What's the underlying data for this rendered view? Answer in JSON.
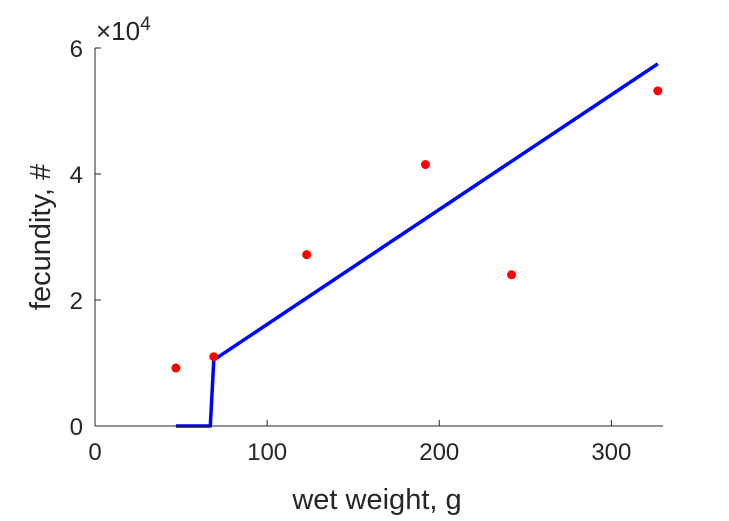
{
  "chart_data": {
    "type": "scatter",
    "xlabel": "wet weight, g",
    "ylabel": "fecundity, #",
    "xlim": [
      0,
      330
    ],
    "ylim": [
      0,
      60000
    ],
    "x_ticks": [
      0,
      100,
      200,
      300
    ],
    "y_ticks": [
      0,
      20000,
      40000,
      60000
    ],
    "x_tick_labels": [
      "0",
      "100",
      "200",
      "300"
    ],
    "y_tick_labels": [
      "0",
      "2",
      "4",
      "6"
    ],
    "y_exponent": {
      "base": "×10",
      "power": "4"
    },
    "grid": false,
    "series": [
      {
        "kind": "scatter",
        "color": "#ff0000",
        "x": [
          47,
          69,
          123,
          192,
          242,
          327
        ],
        "y": [
          9200,
          11000,
          27200,
          41500,
          24000,
          53200
        ]
      },
      {
        "kind": "line",
        "color": "#0000ff",
        "x": [
          47,
          67,
          69,
          327
        ],
        "y": [
          0,
          0,
          10500,
          57500
        ]
      }
    ]
  }
}
